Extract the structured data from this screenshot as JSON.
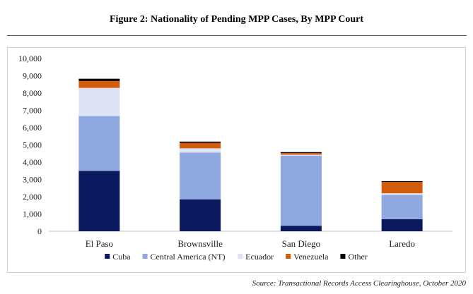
{
  "figure": {
    "title": "Figure 2: Nationality of Pending MPP Cases, By MPP Court",
    "source": "Source: Transactional Records Access Clearinghouse, October 2020"
  },
  "chart_data": {
    "type": "bar",
    "stacked": true,
    "categories": [
      "El Paso",
      "Brownsville",
      "San Diego",
      "Laredo"
    ],
    "series": [
      {
        "name": "Cuba",
        "color": "#0b1a5e",
        "values": [
          3500,
          1850,
          320,
          700
        ]
      },
      {
        "name": "Central America (NT)",
        "color": "#8fa8e0",
        "values": [
          3170,
          2700,
          4050,
          1400
        ]
      },
      {
        "name": "Ecuador",
        "color": "#dde3f4",
        "values": [
          1630,
          250,
          60,
          100
        ]
      },
      {
        "name": "Venezuela",
        "color": "#d35c0c",
        "values": [
          400,
          320,
          100,
          650
        ]
      },
      {
        "name": "Other",
        "color": "#000000",
        "values": [
          130,
          70,
          50,
          50
        ]
      }
    ],
    "ylim": [
      0,
      10000
    ],
    "yticks": [
      0,
      1000,
      2000,
      3000,
      4000,
      5000,
      6000,
      7000,
      8000,
      9000,
      10000
    ],
    "ytick_labels": [
      "0",
      "1,000",
      "2,000",
      "3,000",
      "4,000",
      "5,000",
      "6,000",
      "7,000",
      "8,000",
      "9,000",
      "10,000"
    ],
    "grid": false,
    "legend": "bottom"
  }
}
